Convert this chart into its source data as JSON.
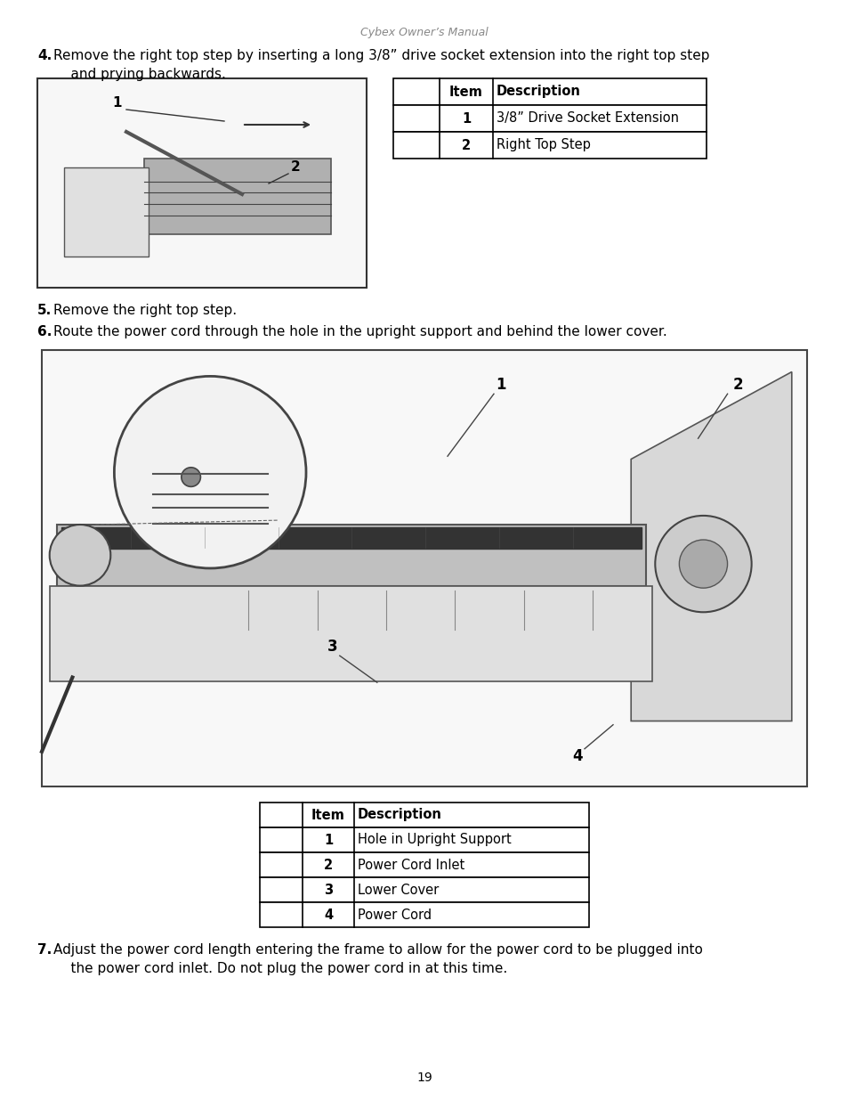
{
  "page_header": "Cybex Owner’s Manual",
  "page_number": "19",
  "background_color": "#ffffff",
  "text_color": "#000000",
  "header_color": "#888888",
  "step4_num": "4.",
  "step4_body": "  Remove the right top step by inserting a long 3/8” drive socket extension into the right top step\n    and prying backwards.",
  "step5_num": "5.",
  "step5_body": "  Remove the right top step.",
  "step6_num": "6.",
  "step6_body": "  Route the power cord through the hole in the upright support and behind the lower cover.",
  "step7_num": "7.",
  "step7_body": "  Adjust the power cord length entering the frame to allow for the power cord to be plugged into\n    the power cord inlet. Do not plug the power cord in at this time.",
  "table1_rows": [
    [
      "1",
      "3/8” Drive Socket Extension"
    ],
    [
      "2",
      "Right Top Step"
    ]
  ],
  "table2_rows": [
    [
      "1",
      "Hole in Upright Support"
    ],
    [
      "2",
      "Power Cord Inlet"
    ],
    [
      "3",
      "Lower Cover"
    ],
    [
      "4",
      "Power Cord"
    ]
  ],
  "font_size_body": 11,
  "font_size_table": 10.5,
  "font_size_page_header": 9,
  "font_size_page_number": 10
}
